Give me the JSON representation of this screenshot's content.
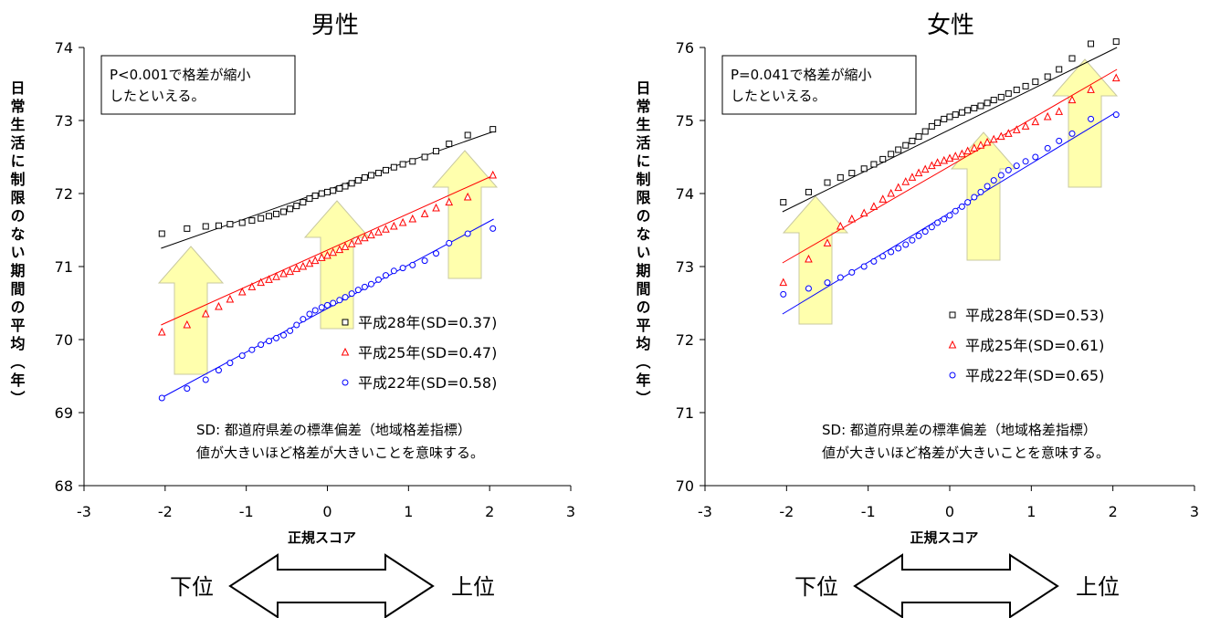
{
  "chart_data": [
    {
      "type": "scatter",
      "title": "男性",
      "xlabel": "正規スコア",
      "ylabel": "日常生活に制限のない期間の平均（年）",
      "xlim": [
        -3,
        3
      ],
      "ylim": [
        68,
        74
      ],
      "xticks": [
        "-3",
        "-2",
        "-1",
        "0",
        "1",
        "2",
        "3"
      ],
      "yticks": [
        "68",
        "69",
        "70",
        "71",
        "72",
        "73",
        "74"
      ],
      "note_box": "P<0.001で格差が縮小したといえる。",
      "sd_note": [
        "SD: 都道府県差の標準偏差（地域格差指標）",
        "値が大きいほど格差が大きいことを意味する。"
      ],
      "arrow_labels": {
        "left": "下位",
        "right": "上位"
      },
      "series": [
        {
          "name": "平成28年(SD=0.37)",
          "marker": "square",
          "color": "#000000",
          "fit": [
            [
              -2.05,
              71.25
            ],
            [
              2.05,
              72.85
            ]
          ],
          "points": [
            [
              -2.04,
              71.45
            ],
            [
              -1.73,
              71.52
            ],
            [
              -1.5,
              71.55
            ],
            [
              -1.34,
              71.56
            ],
            [
              -1.2,
              71.58
            ],
            [
              -1.05,
              71.6
            ],
            [
              -0.93,
              71.63
            ],
            [
              -0.82,
              71.66
            ],
            [
              -0.72,
              71.69
            ],
            [
              -0.63,
              71.72
            ],
            [
              -0.54,
              71.75
            ],
            [
              -0.46,
              71.79
            ],
            [
              -0.38,
              71.83
            ],
            [
              -0.3,
              71.88
            ],
            [
              -0.22,
              71.93
            ],
            [
              -0.15,
              71.97
            ],
            [
              -0.07,
              72.0
            ],
            [
              0.0,
              72.02
            ],
            [
              0.07,
              72.04
            ],
            [
              0.15,
              72.07
            ],
            [
              0.22,
              72.1
            ],
            [
              0.3,
              72.14
            ],
            [
              0.38,
              72.18
            ],
            [
              0.46,
              72.22
            ],
            [
              0.54,
              72.25
            ],
            [
              0.63,
              72.28
            ],
            [
              0.72,
              72.32
            ],
            [
              0.82,
              72.36
            ],
            [
              0.93,
              72.4
            ],
            [
              1.05,
              72.44
            ],
            [
              1.2,
              72.5
            ],
            [
              1.34,
              72.58
            ],
            [
              1.5,
              72.68
            ],
            [
              1.73,
              72.8
            ],
            [
              2.04,
              72.88
            ]
          ]
        },
        {
          "name": "平成25年(SD=0.47)",
          "marker": "triangle",
          "color": "#ff0000",
          "fit": [
            [
              -2.05,
              70.2
            ],
            [
              2.05,
              72.25
            ]
          ],
          "points": [
            [
              -2.04,
              70.1
            ],
            [
              -1.73,
              70.2
            ],
            [
              -1.5,
              70.35
            ],
            [
              -1.34,
              70.45
            ],
            [
              -1.2,
              70.55
            ],
            [
              -1.05,
              70.65
            ],
            [
              -0.93,
              70.72
            ],
            [
              -0.82,
              70.78
            ],
            [
              -0.72,
              70.82
            ],
            [
              -0.63,
              70.86
            ],
            [
              -0.54,
              70.9
            ],
            [
              -0.46,
              70.93
            ],
            [
              -0.38,
              70.97
            ],
            [
              -0.3,
              71.0
            ],
            [
              -0.22,
              71.04
            ],
            [
              -0.15,
              71.08
            ],
            [
              -0.07,
              71.12
            ],
            [
              0.0,
              71.15
            ],
            [
              0.07,
              71.19
            ],
            [
              0.15,
              71.23
            ],
            [
              0.22,
              71.27
            ],
            [
              0.3,
              71.31
            ],
            [
              0.38,
              71.35
            ],
            [
              0.46,
              71.39
            ],
            [
              0.54,
              71.43
            ],
            [
              0.63,
              71.47
            ],
            [
              0.72,
              71.51
            ],
            [
              0.82,
              71.55
            ],
            [
              0.93,
              71.6
            ],
            [
              1.05,
              71.65
            ],
            [
              1.2,
              71.72
            ],
            [
              1.34,
              71.8
            ],
            [
              1.5,
              71.88
            ],
            [
              1.73,
              71.95
            ],
            [
              2.04,
              72.25
            ]
          ]
        },
        {
          "name": "平成22年(SD=0.58)",
          "marker": "circle",
          "color": "#0000ff",
          "fit": [
            [
              -2.05,
              69.2
            ],
            [
              2.05,
              71.65
            ]
          ],
          "points": [
            [
              -2.04,
              69.2
            ],
            [
              -1.73,
              69.33
            ],
            [
              -1.5,
              69.45
            ],
            [
              -1.34,
              69.58
            ],
            [
              -1.2,
              69.68
            ],
            [
              -1.05,
              69.78
            ],
            [
              -0.93,
              69.86
            ],
            [
              -0.82,
              69.93
            ],
            [
              -0.72,
              69.98
            ],
            [
              -0.63,
              70.02
            ],
            [
              -0.54,
              70.06
            ],
            [
              -0.46,
              70.12
            ],
            [
              -0.38,
              70.2
            ],
            [
              -0.3,
              70.28
            ],
            [
              -0.22,
              70.35
            ],
            [
              -0.15,
              70.4
            ],
            [
              -0.07,
              70.44
            ],
            [
              0.0,
              70.47
            ],
            [
              0.07,
              70.5
            ],
            [
              0.15,
              70.54
            ],
            [
              0.22,
              70.58
            ],
            [
              0.3,
              70.63
            ],
            [
              0.38,
              70.68
            ],
            [
              0.46,
              70.72
            ],
            [
              0.54,
              70.76
            ],
            [
              0.63,
              70.82
            ],
            [
              0.72,
              70.88
            ],
            [
              0.82,
              70.94
            ],
            [
              0.93,
              70.98
            ],
            [
              1.05,
              71.02
            ],
            [
              1.2,
              71.08
            ],
            [
              1.34,
              71.18
            ],
            [
              1.5,
              71.32
            ],
            [
              1.73,
              71.45
            ],
            [
              2.04,
              71.52
            ]
          ]
        }
      ]
    },
    {
      "type": "scatter",
      "title": "女性",
      "xlabel": "正規スコア",
      "ylabel": "日常生活に制限のない期間の平均（年）",
      "xlim": [
        -3,
        3
      ],
      "ylim": [
        70,
        76
      ],
      "xticks": [
        "-3",
        "-2",
        "-1",
        "0",
        "1",
        "2",
        "3"
      ],
      "yticks": [
        "70",
        "71",
        "72",
        "73",
        "74",
        "75",
        "76"
      ],
      "note_box": "P=0.041で格差が縮小したといえる。",
      "sd_note": [
        "SD: 都道府県差の標準偏差（地域格差指標）",
        "値が大きいほど格差が大きいことを意味する。"
      ],
      "arrow_labels": {
        "left": "下位",
        "right": "上位"
      },
      "series": [
        {
          "name": "平成28年(SD=0.53)",
          "marker": "square",
          "color": "#000000",
          "fit": [
            [
              -2.05,
              73.75
            ],
            [
              2.05,
              76.0
            ]
          ],
          "points": [
            [
              -2.04,
              73.88
            ],
            [
              -1.73,
              74.02
            ],
            [
              -1.5,
              74.15
            ],
            [
              -1.34,
              74.22
            ],
            [
              -1.2,
              74.28
            ],
            [
              -1.05,
              74.34
            ],
            [
              -0.93,
              74.4
            ],
            [
              -0.82,
              74.47
            ],
            [
              -0.72,
              74.54
            ],
            [
              -0.63,
              74.6
            ],
            [
              -0.54,
              74.66
            ],
            [
              -0.46,
              74.72
            ],
            [
              -0.38,
              74.78
            ],
            [
              -0.3,
              74.85
            ],
            [
              -0.22,
              74.92
            ],
            [
              -0.15,
              74.97
            ],
            [
              -0.07,
              75.02
            ],
            [
              0.0,
              75.05
            ],
            [
              0.07,
              75.08
            ],
            [
              0.15,
              75.11
            ],
            [
              0.22,
              75.14
            ],
            [
              0.3,
              75.17
            ],
            [
              0.38,
              75.2
            ],
            [
              0.46,
              75.24
            ],
            [
              0.54,
              75.28
            ],
            [
              0.63,
              75.32
            ],
            [
              0.72,
              75.37
            ],
            [
              0.82,
              75.42
            ],
            [
              0.93,
              75.47
            ],
            [
              1.05,
              75.53
            ],
            [
              1.2,
              75.6
            ],
            [
              1.34,
              75.7
            ],
            [
              1.5,
              75.85
            ],
            [
              1.73,
              76.05
            ],
            [
              2.04,
              76.08
            ]
          ]
        },
        {
          "name": "平成25年(SD=0.61)",
          "marker": "triangle",
          "color": "#ff0000",
          "fit": [
            [
              -2.05,
              73.05
            ],
            [
              2.05,
              75.7
            ]
          ],
          "points": [
            [
              -2.04,
              72.78
            ],
            [
              -1.73,
              73.1
            ],
            [
              -1.5,
              73.32
            ],
            [
              -1.34,
              73.55
            ],
            [
              -1.2,
              73.65
            ],
            [
              -1.05,
              73.73
            ],
            [
              -0.93,
              73.82
            ],
            [
              -0.82,
              73.92
            ],
            [
              -0.72,
              74.0
            ],
            [
              -0.63,
              74.08
            ],
            [
              -0.54,
              74.16
            ],
            [
              -0.46,
              74.22
            ],
            [
              -0.38,
              74.28
            ],
            [
              -0.3,
              74.33
            ],
            [
              -0.22,
              74.38
            ],
            [
              -0.15,
              74.42
            ],
            [
              -0.07,
              74.45
            ],
            [
              0.0,
              74.48
            ],
            [
              0.07,
              74.51
            ],
            [
              0.15,
              74.54
            ],
            [
              0.22,
              74.58
            ],
            [
              0.3,
              74.62
            ],
            [
              0.38,
              74.66
            ],
            [
              0.46,
              74.7
            ],
            [
              0.54,
              74.74
            ],
            [
              0.63,
              74.78
            ],
            [
              0.72,
              74.82
            ],
            [
              0.82,
              74.87
            ],
            [
              0.93,
              74.92
            ],
            [
              1.05,
              74.98
            ],
            [
              1.2,
              75.05
            ],
            [
              1.34,
              75.12
            ],
            [
              1.5,
              75.28
            ],
            [
              1.73,
              75.42
            ],
            [
              2.04,
              75.58
            ]
          ]
        },
        {
          "name": "平成22年(SD=0.65)",
          "marker": "circle",
          "color": "#0000ff",
          "fit": [
            [
              -2.05,
              72.35
            ],
            [
              2.05,
              75.12
            ]
          ],
          "points": [
            [
              -2.04,
              72.62
            ],
            [
              -1.73,
              72.7
            ],
            [
              -1.5,
              72.78
            ],
            [
              -1.34,
              72.85
            ],
            [
              -1.2,
              72.92
            ],
            [
              -1.05,
              73.0
            ],
            [
              -0.93,
              73.07
            ],
            [
              -0.82,
              73.14
            ],
            [
              -0.72,
              73.2
            ],
            [
              -0.63,
              73.25
            ],
            [
              -0.54,
              73.3
            ],
            [
              -0.46,
              73.36
            ],
            [
              -0.38,
              73.42
            ],
            [
              -0.3,
              73.48
            ],
            [
              -0.22,
              73.54
            ],
            [
              -0.15,
              73.6
            ],
            [
              -0.07,
              73.65
            ],
            [
              0.0,
              73.7
            ],
            [
              0.07,
              73.76
            ],
            [
              0.15,
              73.82
            ],
            [
              0.22,
              73.88
            ],
            [
              0.3,
              73.95
            ],
            [
              0.38,
              74.02
            ],
            [
              0.46,
              74.1
            ],
            [
              0.54,
              74.18
            ],
            [
              0.63,
              74.25
            ],
            [
              0.72,
              74.32
            ],
            [
              0.82,
              74.38
            ],
            [
              0.93,
              74.44
            ],
            [
              1.05,
              74.5
            ],
            [
              1.2,
              74.62
            ],
            [
              1.34,
              74.72
            ],
            [
              1.5,
              74.82
            ],
            [
              1.73,
              75.02
            ],
            [
              2.04,
              75.08
            ]
          ]
        }
      ]
    }
  ]
}
